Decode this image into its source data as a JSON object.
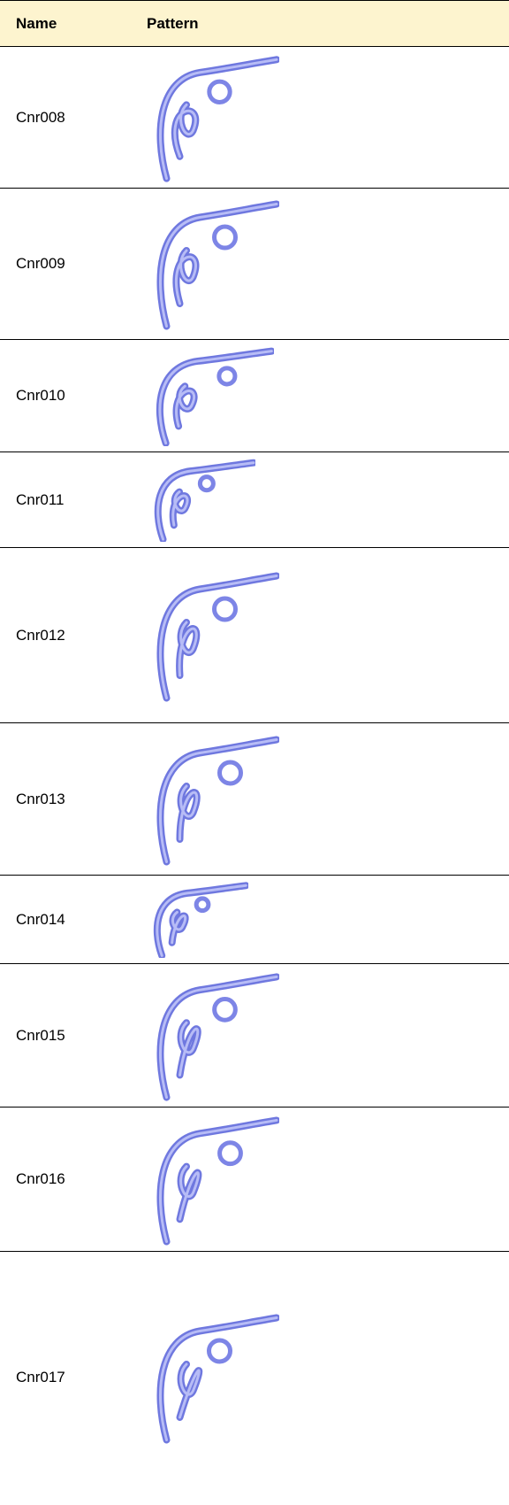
{
  "table": {
    "header": [
      "Name",
      "Pattern"
    ],
    "rows": [
      [
        "Cnr008"
      ],
      [
        "Cnr009"
      ],
      [
        "Cnr010"
      ],
      [
        "Cnr011"
      ],
      [
        "Cnr012"
      ],
      [
        "Cnr013"
      ],
      [
        "Cnr014"
      ],
      [
        "Cnr015"
      ],
      [
        "Cnr016"
      ],
      [
        "Cnr017"
      ]
    ]
  }
}
